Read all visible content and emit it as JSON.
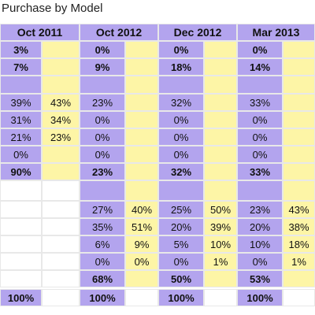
{
  "title": "Purchase by Model",
  "headers": [
    "Oct 2011",
    "Oct 2012",
    "Dec 2012",
    "Mar 2013"
  ],
  "rows": [
    [
      "3%",
      null,
      "0%",
      null,
      "0%",
      null,
      "0%",
      null
    ],
    [
      "7%",
      null,
      "9%",
      null,
      "18%",
      null,
      "14%",
      null
    ],
    [
      "39%",
      "43%",
      "23%",
      null,
      "32%",
      null,
      "33%",
      null
    ],
    [
      "31%",
      "34%",
      "0%",
      null,
      "0%",
      null,
      "0%",
      null
    ],
    [
      "21%",
      "23%",
      "0%",
      null,
      "0%",
      null,
      "0%",
      null
    ],
    [
      "0%",
      null,
      "0%",
      null,
      "0%",
      null,
      "0%",
      null
    ],
    [
      "90%",
      null,
      "23%",
      null,
      "32%",
      null,
      "33%",
      null
    ],
    [
      null,
      null,
      "27%",
      "40%",
      "25%",
      "50%",
      "23%",
      "43%"
    ],
    [
      null,
      null,
      "35%",
      "51%",
      "20%",
      "39%",
      "20%",
      "38%"
    ],
    [
      null,
      null,
      "6%",
      "9%",
      "5%",
      "10%",
      "10%",
      "18%"
    ],
    [
      null,
      null,
      "0%",
      "0%",
      "0%",
      "1%",
      "0%",
      "1%"
    ],
    [
      null,
      null,
      "68%",
      null,
      "50%",
      null,
      "53%",
      null
    ],
    [
      "100%",
      null,
      "100%",
      null,
      "100%",
      null,
      "100%",
      null
    ]
  ]
}
